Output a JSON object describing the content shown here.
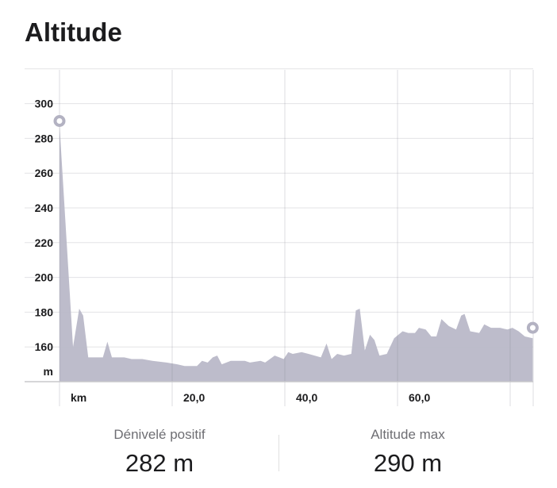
{
  "title": "Altitude",
  "chart_data": {
    "type": "area",
    "title": "Altitude",
    "xlabel": "km",
    "ylabel": "m",
    "xlim": [
      0,
      84
    ],
    "ylim": [
      140,
      320
    ],
    "xticks": [
      "20,0",
      "40,0",
      "60,0"
    ],
    "xtick_values": [
      20,
      40,
      60
    ],
    "yticks": [
      "160",
      "180",
      "200",
      "220",
      "240",
      "260",
      "280",
      "300"
    ],
    "ytick_values": [
      160,
      180,
      200,
      220,
      240,
      260,
      280,
      300
    ],
    "grid": true,
    "color": "#b9b8c8",
    "x": [
      0,
      2.4,
      3.5,
      4.2,
      5.1,
      6.5,
      7.7,
      8.5,
      9.3,
      11.5,
      12.8,
      14.7,
      16.5,
      19,
      20.9,
      22.2,
      24.4,
      25.3,
      26.3,
      27.2,
      28,
      28.8,
      30.4,
      32.9,
      33.8,
      35.7,
      36.5,
      38.2,
      39.8,
      40.6,
      41.4,
      43,
      44.2,
      46.4,
      47.4,
      48.3,
      49.3,
      50.5,
      51.8,
      52.6,
      53.3,
      54.2,
      55.1,
      55.9,
      56.8,
      58.1,
      59.4,
      60.9,
      61.9,
      63.1,
      63.8,
      65,
      66,
      66.9,
      67.8,
      69.1,
      70.4,
      71.3,
      71.9,
      72.9,
      74.5,
      75.4,
      76.6,
      78.2,
      79.5,
      80.4,
      81.5,
      82.6,
      84
    ],
    "y": [
      288,
      160,
      182,
      178,
      154,
      154,
      154,
      163,
      154,
      154,
      153,
      153,
      152,
      151,
      150,
      149,
      149,
      152,
      151,
      154,
      155,
      150,
      152,
      152,
      151,
      152,
      151,
      155,
      153,
      157,
      156,
      157,
      156,
      154,
      162,
      153,
      156,
      155,
      156,
      181,
      182,
      158,
      167,
      164,
      155,
      156,
      165,
      169,
      168,
      168,
      171,
      170,
      166,
      166,
      176,
      172,
      170,
      178,
      179,
      169,
      168,
      173,
      171,
      171,
      170,
      171,
      169,
      166,
      165
    ],
    "markers": [
      {
        "label": "start",
        "x": 0,
        "y": 290
      },
      {
        "label": "end",
        "x": 84,
        "y": 171
      }
    ]
  },
  "stats": [
    {
      "label": "Dénivelé positif",
      "value": "282 m"
    },
    {
      "label": "Altitude max",
      "value": "290 m"
    }
  ]
}
